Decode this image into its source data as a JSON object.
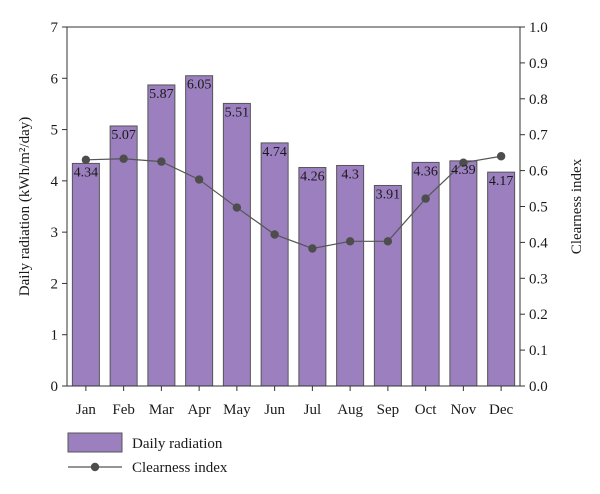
{
  "chart_data": {
    "type": "bar",
    "categories": [
      "Jan",
      "Feb",
      "Mar",
      "Apr",
      "May",
      "Jun",
      "Jul",
      "Aug",
      "Sep",
      "Oct",
      "Nov",
      "Dec"
    ],
    "series": [
      {
        "name": "Daily radiation",
        "type": "bar",
        "axis": "left",
        "values": [
          4.34,
          5.07,
          5.87,
          6.05,
          5.51,
          4.74,
          4.26,
          4.3,
          3.91,
          4.36,
          4.39,
          4.17
        ],
        "labels": [
          "4.34",
          "5.07",
          "5.87",
          "6.05",
          "5.51",
          "4.74",
          "4.26",
          "4.3",
          "3.91",
          "4.36",
          "4.39",
          "4.17"
        ],
        "color": "#9b7fbf",
        "edge_color": "#555555"
      },
      {
        "name": "Clearness index",
        "type": "line",
        "axis": "right",
        "values": [
          0.63,
          0.633,
          0.625,
          0.575,
          0.497,
          0.422,
          0.383,
          0.403,
          0.403,
          0.522,
          0.622,
          0.64
        ],
        "color": "#555555",
        "marker_color": "#4d4d4d"
      }
    ],
    "ylabel_left": "Daily radiation (kWh/m²/day)",
    "ylabel_right": "Clearness index",
    "ylim_left": [
      0,
      7
    ],
    "ylim_right": [
      0,
      1.0
    ],
    "yticks_left": [
      "0",
      "1",
      "2",
      "3",
      "4",
      "5",
      "6",
      "7"
    ],
    "yticks_right": [
      "0.0",
      "0.1",
      "0.2",
      "0.3",
      "0.4",
      "0.5",
      "0.6",
      "0.7",
      "0.8",
      "0.9",
      "1.0"
    ],
    "grid": false,
    "legend_position": "bottom-left"
  }
}
